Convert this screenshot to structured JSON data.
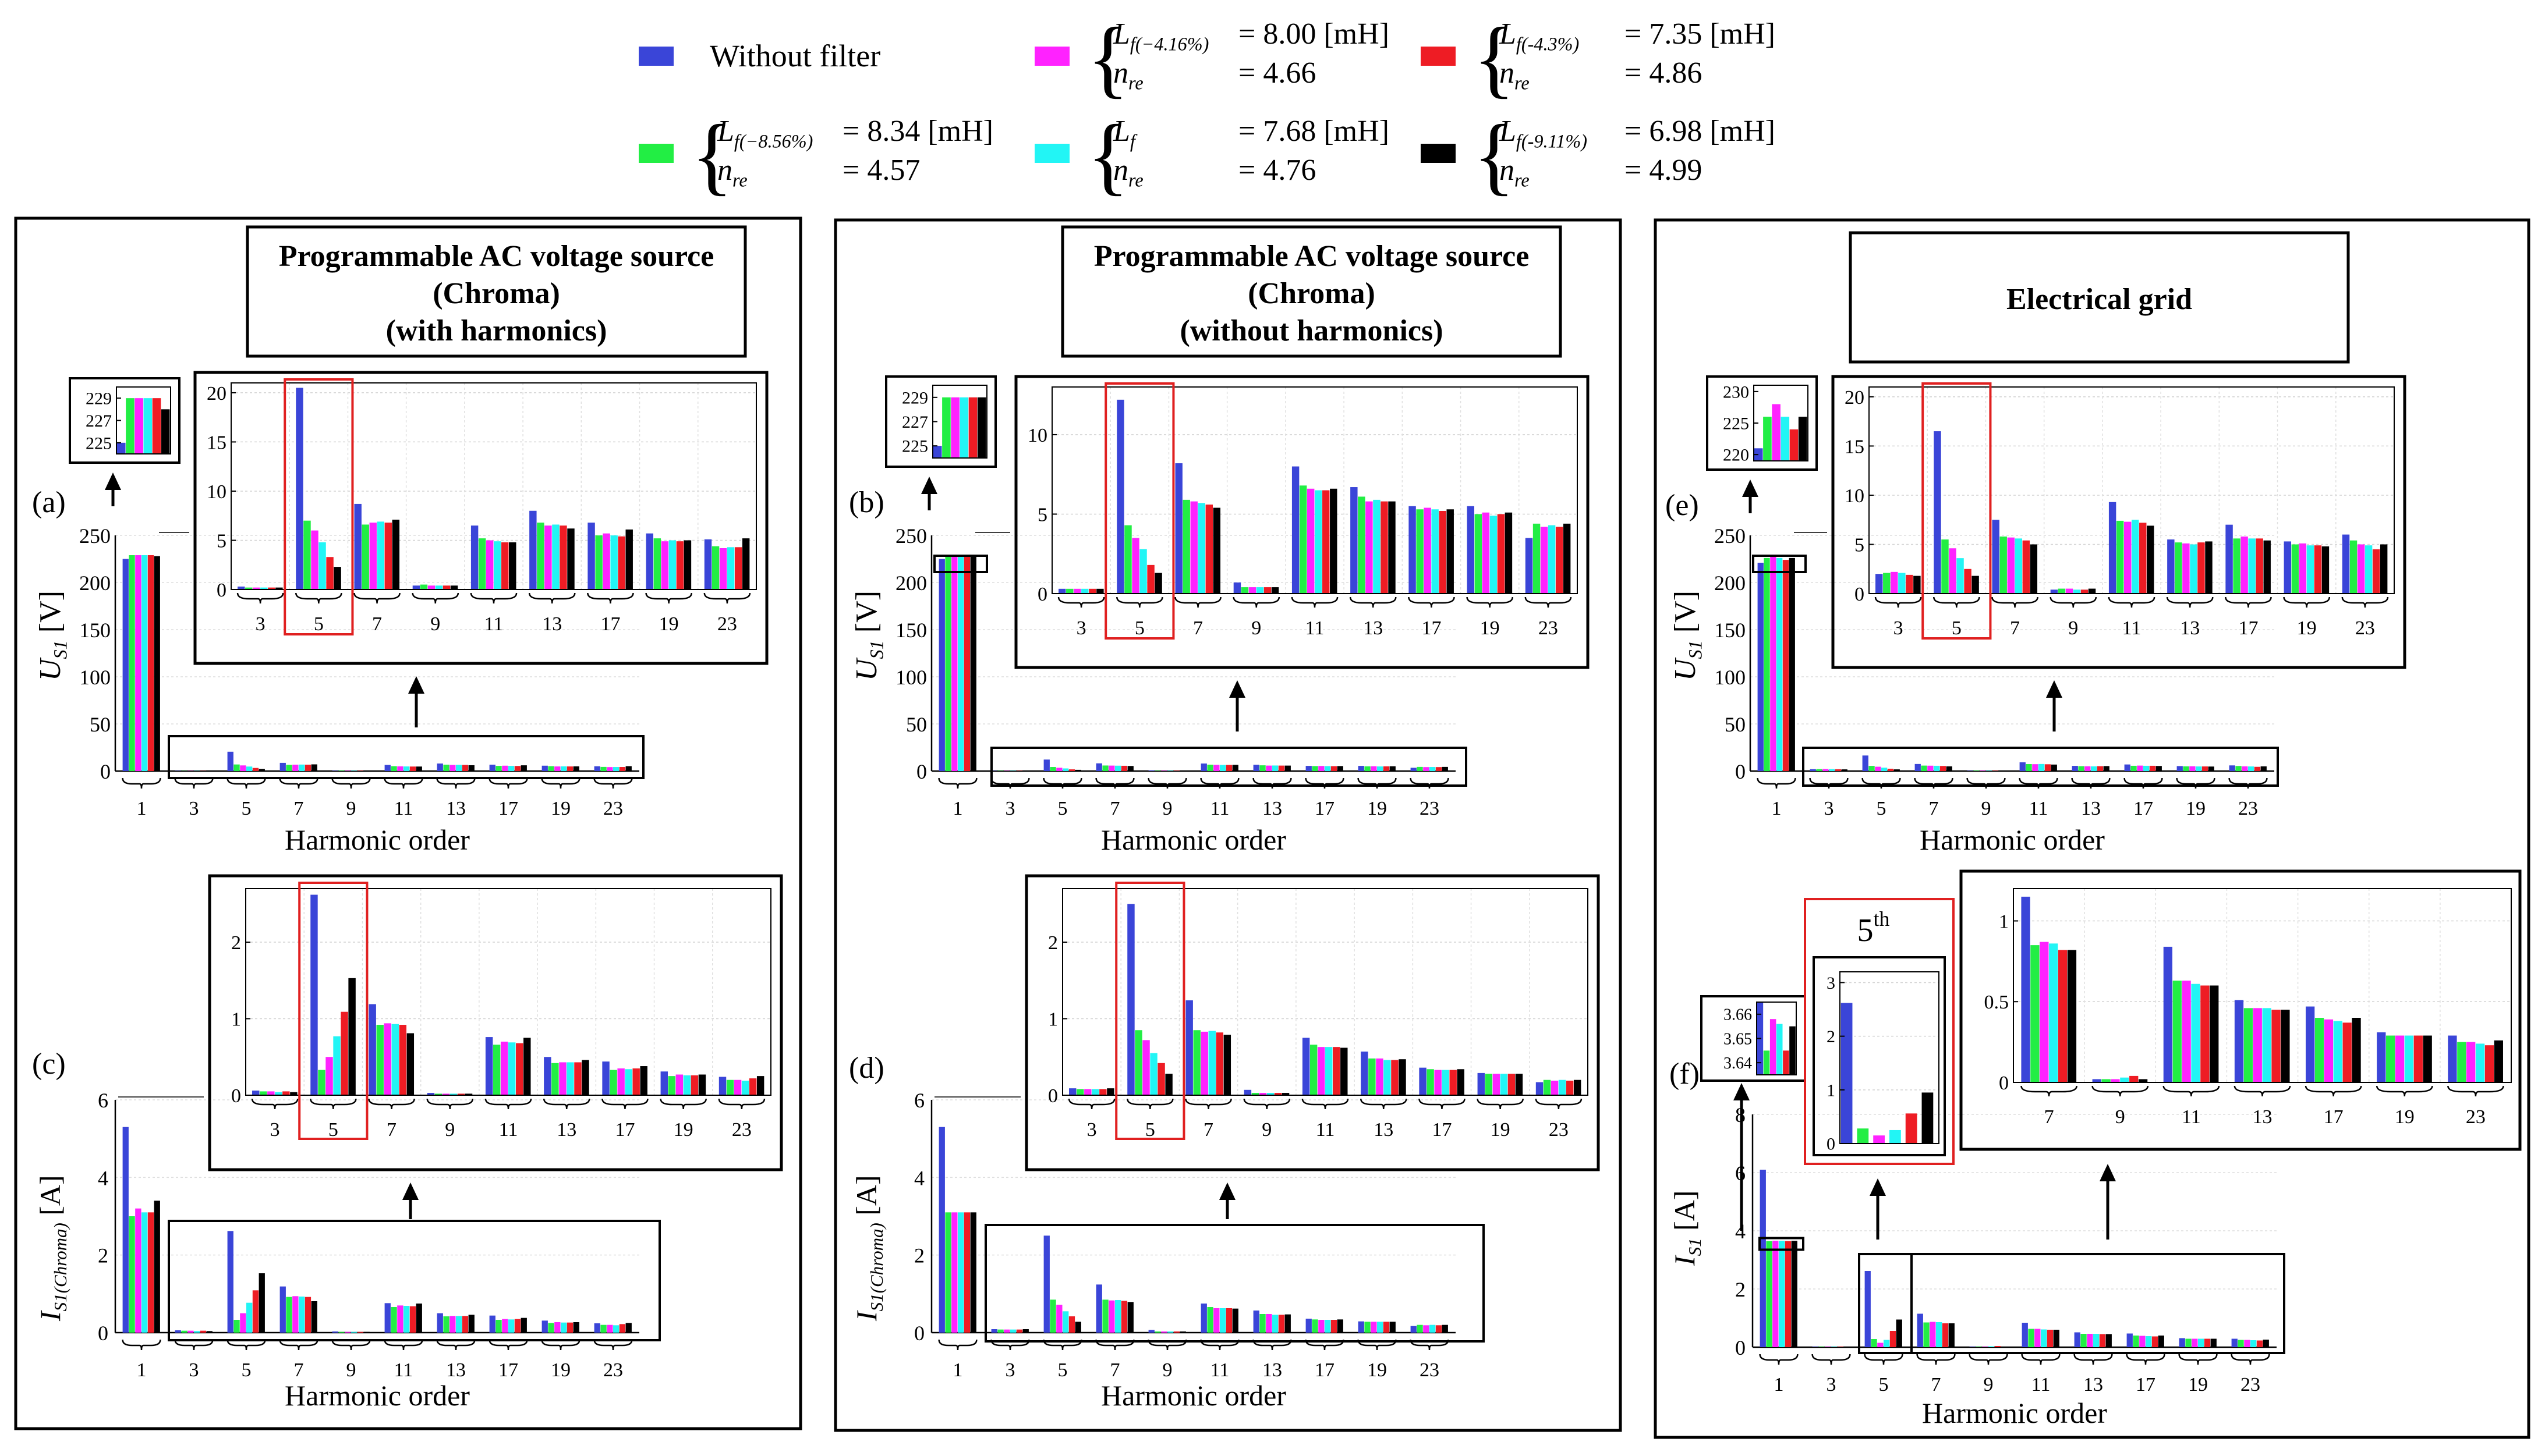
{
  "legend": {
    "items": [
      {
        "id": "nofilter",
        "color": "#3a45d8",
        "line1": "Without filter",
        "line2": ""
      },
      {
        "id": "m416",
        "color": "#ff22ff",
        "sym1": "L",
        "sub1": "f(−4.16%)",
        "val1": "= 8.00 [mH]",
        "sym2": "n",
        "sub2": "re",
        "val2": "= 4.66"
      },
      {
        "id": "m43",
        "color": "#ee1c24",
        "sym1": "L",
        "sub1": "f(-4.3%)",
        "val1": "= 7.35 [mH]",
        "sym2": "n",
        "sub2": "re",
        "val2": "= 4.86"
      },
      {
        "id": "m856",
        "color": "#22ee44",
        "sym1": "L",
        "sub1": "f(−8.56%)",
        "val1": "= 8.34 [mH]",
        "sym2": "n",
        "sub2": "re",
        "val2": "= 4.57"
      },
      {
        "id": "lf",
        "color": "#22f5f5",
        "sym1": "L",
        "sub1": "f",
        "val1": "= 7.68 [mH]",
        "sym2": "n",
        "sub2": "re",
        "val2": "= 4.76"
      },
      {
        "id": "m911",
        "color": "#000000",
        "sym1": "L",
        "sub1": "f(-9.11%)",
        "val1": "= 6.98 [mH]",
        "sym2": "n",
        "sub2": "re",
        "val2": "= 4.99"
      }
    ]
  },
  "panels": [
    {
      "title_lines": [
        "Programmable AC voltage source",
        "(Chroma)",
        "(with harmonics)"
      ]
    },
    {
      "title_lines": [
        "Programmable AC voltage source",
        "(Chroma)",
        "(without harmonics)"
      ]
    },
    {
      "title_lines": [
        "Electrical grid"
      ]
    }
  ],
  "labels": {
    "a": "(a)",
    "b": "(b)",
    "c": "(c)",
    "d": "(d)",
    "e": "(e)",
    "f": "(f)",
    "xlabel": "Harmonic order",
    "fifth": "5",
    "fifth_sup": "th",
    "us1_sym": "U",
    "us1_sub": "S1",
    "us1_unit": " [V]",
    "is1c_sym": "I",
    "is1c_sub": "S1(Chroma)",
    "is1c_unit": " [A]",
    "is1_sym": "I",
    "is1_sub": "S1",
    "is1_unit": " [A]"
  },
  "chart_data": [
    {
      "id": "a",
      "type": "bar",
      "title": "Programmable AC voltage source (Chroma) (with harmonics)",
      "xlabel": "Harmonic order",
      "ylabel": "U_S1 [V]",
      "ylim": [
        0,
        250
      ],
      "yticks": [
        0,
        50,
        100,
        150,
        200,
        250
      ],
      "series_names": [
        "Without filter",
        "Lf(-8.56%)",
        "Lf(-4.16%)",
        "Lf",
        "Lf(-4.3%)",
        "Lf(-9.11%)"
      ],
      "categories": [
        "1",
        "3",
        "5",
        "7",
        "9",
        "11",
        "13",
        "17",
        "19",
        "23"
      ],
      "values": [
        [
          225,
          0.3,
          20.5,
          8.7,
          0.4,
          6.5,
          8.0,
          6.8,
          5.7,
          5.1
        ],
        [
          229,
          0.2,
          7.0,
          6.6,
          0.5,
          5.2,
          6.8,
          5.5,
          5.2,
          4.4
        ],
        [
          229,
          0.2,
          6.0,
          6.8,
          0.4,
          5.0,
          6.5,
          5.7,
          4.9,
          4.2
        ],
        [
          229,
          0.2,
          4.8,
          6.9,
          0.4,
          4.9,
          6.6,
          5.5,
          5.0,
          4.3
        ],
        [
          229,
          0.2,
          3.3,
          6.8,
          0.4,
          4.8,
          6.5,
          5.4,
          4.9,
          4.3
        ],
        [
          228,
          0.2,
          2.3,
          7.1,
          0.4,
          4.8,
          6.2,
          6.1,
          5.0,
          5.2
        ]
      ],
      "inset_fundamental": {
        "ylim": [
          224,
          230
        ],
        "yticks": [
          225,
          227,
          229
        ]
      },
      "inset_harmonics": {
        "ylim": [
          0,
          21
        ],
        "yticks": [
          0,
          5,
          10,
          15,
          20
        ]
      }
    },
    {
      "id": "b",
      "type": "bar",
      "title": "Programmable AC voltage source (Chroma) (without harmonics)",
      "xlabel": "Harmonic order",
      "ylabel": "U_S1 [V]",
      "ylim": [
        0,
        250
      ],
      "yticks": [
        0,
        50,
        100,
        150,
        200,
        250
      ],
      "series_names": [
        "Without filter",
        "Lf(-8.56%)",
        "Lf(-4.16%)",
        "Lf",
        "Lf(-4.3%)",
        "Lf(-9.11%)"
      ],
      "categories": [
        "1",
        "3",
        "5",
        "7",
        "9",
        "11",
        "13",
        "17",
        "19",
        "23"
      ],
      "values": [
        [
          225,
          0.3,
          12.2,
          8.2,
          0.7,
          8.0,
          6.7,
          5.5,
          5.5,
          3.5
        ],
        [
          229,
          0.3,
          4.3,
          5.9,
          0.4,
          6.8,
          6.1,
          5.3,
          5.0,
          4.4
        ],
        [
          229,
          0.3,
          3.5,
          5.8,
          0.4,
          6.6,
          5.8,
          5.4,
          5.1,
          4.2
        ],
        [
          229,
          0.3,
          2.8,
          5.7,
          0.4,
          6.5,
          5.9,
          5.3,
          4.9,
          4.3
        ],
        [
          229,
          0.3,
          1.8,
          5.6,
          0.4,
          6.5,
          5.8,
          5.2,
          5.0,
          4.2
        ],
        [
          229,
          0.3,
          1.3,
          5.4,
          0.4,
          6.6,
          5.8,
          5.3,
          5.1,
          4.4
        ]
      ],
      "inset_fundamental": {
        "ylim": [
          224,
          230
        ],
        "yticks": [
          225,
          227,
          229
        ]
      },
      "inset_harmonics": {
        "ylim": [
          0,
          13
        ],
        "yticks": [
          0,
          5,
          10
        ]
      }
    },
    {
      "id": "e",
      "type": "bar",
      "title": "Electrical grid",
      "xlabel": "Harmonic order",
      "ylabel": "U_S1 [V]",
      "ylim": [
        0,
        250
      ],
      "yticks": [
        0,
        50,
        100,
        150,
        200,
        250
      ],
      "series_names": [
        "Without filter",
        "Lf(-8.56%)",
        "Lf(-4.16%)",
        "Lf",
        "Lf(-4.3%)",
        "Lf(-9.11%)"
      ],
      "categories": [
        "1",
        "3",
        "5",
        "7",
        "9",
        "11",
        "13",
        "17",
        "19",
        "23"
      ],
      "values": [
        [
          221,
          2.0,
          16.5,
          7.5,
          0.4,
          9.3,
          5.5,
          7.0,
          5.3,
          6.0
        ],
        [
          226,
          2.1,
          5.5,
          5.8,
          0.5,
          7.4,
          5.2,
          5.6,
          5.0,
          5.4
        ],
        [
          228,
          2.2,
          4.6,
          5.7,
          0.5,
          7.3,
          5.1,
          5.8,
          5.1,
          5.0
        ],
        [
          226,
          2.1,
          3.6,
          5.6,
          0.4,
          7.5,
          5.0,
          5.6,
          4.9,
          4.9
        ],
        [
          224,
          1.9,
          2.5,
          5.4,
          0.4,
          7.2,
          5.2,
          5.6,
          4.9,
          4.5
        ],
        [
          226,
          1.8,
          1.8,
          5.0,
          0.5,
          6.9,
          5.3,
          5.4,
          4.8,
          5.0
        ]
      ],
      "inset_fundamental": {
        "ylim": [
          219,
          231
        ],
        "yticks": [
          220,
          225,
          230
        ]
      },
      "inset_harmonics": {
        "ylim": [
          0,
          21
        ],
        "yticks": [
          0,
          5,
          10,
          15,
          20
        ]
      }
    },
    {
      "id": "c",
      "type": "bar",
      "title": "Programmable AC voltage source (Chroma) (with harmonics)",
      "xlabel": "Harmonic order",
      "ylabel": "I_S1(Chroma) [A]",
      "ylim": [
        0,
        6
      ],
      "yticks": [
        0,
        2,
        4,
        6
      ],
      "series_names": [
        "Without filter",
        "Lf(-8.56%)",
        "Lf(-4.16%)",
        "Lf",
        "Lf(-4.3%)",
        "Lf(-9.11%)"
      ],
      "categories": [
        "1",
        "3",
        "5",
        "7",
        "9",
        "11",
        "13",
        "17",
        "19",
        "23"
      ],
      "values": [
        [
          5.3,
          0.06,
          2.62,
          1.19,
          0.03,
          0.76,
          0.5,
          0.44,
          0.31,
          0.24
        ],
        [
          3.0,
          0.05,
          0.33,
          0.92,
          0.02,
          0.66,
          0.42,
          0.33,
          0.25,
          0.2
        ],
        [
          3.2,
          0.05,
          0.5,
          0.94,
          0.02,
          0.7,
          0.43,
          0.35,
          0.27,
          0.2
        ],
        [
          3.1,
          0.04,
          0.77,
          0.93,
          0.02,
          0.69,
          0.43,
          0.34,
          0.26,
          0.19
        ],
        [
          3.1,
          0.05,
          1.09,
          0.92,
          0.02,
          0.68,
          0.43,
          0.35,
          0.26,
          0.22
        ],
        [
          3.4,
          0.04,
          1.53,
          0.81,
          0.02,
          0.75,
          0.46,
          0.38,
          0.27,
          0.25
        ]
      ],
      "inset_harmonics": {
        "ylim": [
          0,
          2.7
        ],
        "yticks": [
          0,
          1,
          2
        ]
      }
    },
    {
      "id": "d",
      "type": "bar",
      "title": "Programmable AC voltage source (Chroma) (without harmonics)",
      "xlabel": "Harmonic order",
      "ylabel": "I_S1(Chroma) [A]",
      "ylim": [
        0,
        6
      ],
      "yticks": [
        0,
        2,
        4,
        6
      ],
      "series_names": [
        "Without filter",
        "Lf(-8.56%)",
        "Lf(-4.16%)",
        "Lf",
        "Lf(-4.3%)",
        "Lf(-9.11%)"
      ],
      "categories": [
        "1",
        "3",
        "5",
        "7",
        "9",
        "11",
        "13",
        "17",
        "19",
        "23"
      ],
      "values": [
        [
          5.3,
          0.09,
          2.5,
          1.24,
          0.07,
          0.75,
          0.57,
          0.36,
          0.29,
          0.17
        ],
        [
          3.1,
          0.08,
          0.85,
          0.85,
          0.03,
          0.66,
          0.48,
          0.34,
          0.28,
          0.2
        ],
        [
          3.1,
          0.08,
          0.72,
          0.83,
          0.03,
          0.63,
          0.48,
          0.33,
          0.28,
          0.19
        ],
        [
          3.1,
          0.08,
          0.55,
          0.84,
          0.03,
          0.63,
          0.46,
          0.33,
          0.28,
          0.2
        ],
        [
          3.1,
          0.08,
          0.42,
          0.82,
          0.03,
          0.63,
          0.46,
          0.33,
          0.28,
          0.19
        ],
        [
          3.1,
          0.09,
          0.28,
          0.79,
          0.03,
          0.62,
          0.47,
          0.34,
          0.28,
          0.2
        ]
      ],
      "inset_harmonics": {
        "ylim": [
          0,
          2.7
        ],
        "yticks": [
          0,
          1,
          2
        ]
      }
    },
    {
      "id": "f",
      "type": "bar",
      "title": "Electrical grid",
      "xlabel": "Harmonic order",
      "ylabel": "I_S1 [A]",
      "ylim": [
        0,
        8
      ],
      "yticks": [
        0,
        2,
        4,
        6,
        8
      ],
      "series_names": [
        "Without filter",
        "Lf(-8.56%)",
        "Lf(-4.16%)",
        "Lf",
        "Lf(-4.3%)",
        "Lf(-9.11%)"
      ],
      "categories": [
        "1",
        "3",
        "5",
        "7",
        "9",
        "11",
        "13",
        "17",
        "19",
        "23"
      ],
      "values": [
        [
          6.1,
          0.02,
          2.62,
          1.15,
          0.02,
          0.84,
          0.51,
          0.47,
          0.31,
          0.29
        ],
        [
          3.645,
          0.02,
          0.28,
          0.85,
          0.02,
          0.63,
          0.46,
          0.4,
          0.29,
          0.25
        ],
        [
          3.658,
          0.02,
          0.15,
          0.87,
          0.02,
          0.63,
          0.46,
          0.39,
          0.29,
          0.25
        ],
        [
          3.656,
          0.02,
          0.25,
          0.86,
          0.03,
          0.61,
          0.46,
          0.38,
          0.29,
          0.24
        ],
        [
          3.645,
          0.02,
          0.56,
          0.82,
          0.04,
          0.6,
          0.45,
          0.37,
          0.29,
          0.23
        ],
        [
          3.655,
          0.02,
          0.95,
          0.82,
          0.02,
          0.6,
          0.45,
          0.4,
          0.29,
          0.26
        ]
      ],
      "inset_fundamental": {
        "ylim": [
          3.635,
          3.665
        ],
        "yticks": [
          3.64,
          3.65,
          3.66
        ],
        "tick_labels": [
          "3.64",
          "3.65",
          "3.66"
        ]
      },
      "inset_fifth": {
        "ylim": [
          0,
          3.2
        ],
        "yticks": [
          0,
          1,
          2,
          3
        ]
      },
      "inset_harmonics": {
        "ylim": [
          0,
          1.2
        ],
        "yticks": [
          0,
          0.5,
          1
        ],
        "tick_labels": [
          "0",
          "0.5",
          "1"
        ]
      }
    }
  ]
}
